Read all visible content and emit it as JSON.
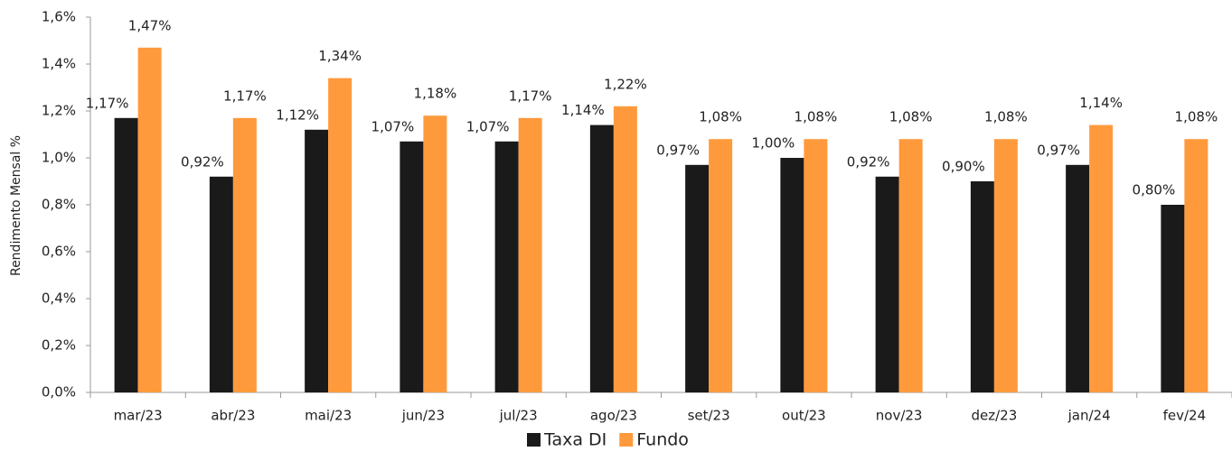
{
  "chart_data": {
    "type": "bar",
    "y_label": "Rendimento Mensal %",
    "categories": [
      "mar/23",
      "abr/23",
      "mai/23",
      "jun/23",
      "jul/23",
      "ago/23",
      "set/23",
      "out/23",
      "nov/23",
      "dez/23",
      "jan/24",
      "fev/24"
    ],
    "series": [
      {
        "name": "Taxa DI",
        "color": "#1a1a1a",
        "values": [
          1.17,
          0.92,
          1.12,
          1.07,
          1.07,
          1.14,
          0.97,
          1.0,
          0.92,
          0.9,
          0.97,
          0.8
        ],
        "value_labels": [
          "1,17%",
          "0,92%",
          "1,12%",
          "1,07%",
          "1,07%",
          "1,14%",
          "0,97%",
          "1,00%",
          "0,92%",
          "0,90%",
          "0,97%",
          "0,80%"
        ]
      },
      {
        "name": "Fundo",
        "color": "#ff9a3c",
        "values": [
          1.47,
          1.17,
          1.34,
          1.18,
          1.17,
          1.22,
          1.08,
          1.08,
          1.08,
          1.08,
          1.14,
          1.08
        ],
        "value_labels": [
          "1,47%",
          "1,17%",
          "1,34%",
          "1,18%",
          "1,17%",
          "1,22%",
          "1,08%",
          "1,08%",
          "1,08%",
          "1,08%",
          "1,14%",
          "1,08%"
        ]
      }
    ],
    "ylim": [
      0,
      1.6
    ],
    "yticks": [
      {
        "value": 0,
        "label": "0,0%"
      },
      {
        "value": 0.2,
        "label": "0,2%"
      },
      {
        "value": 0.4,
        "label": "0,4%"
      },
      {
        "value": 0.6,
        "label": "0,6%"
      },
      {
        "value": 0.8,
        "label": "0,8%"
      },
      {
        "value": 1.0,
        "label": "1,0%"
      },
      {
        "value": 1.2,
        "label": "1,2%"
      },
      {
        "value": 1.4,
        "label": "1,4%"
      },
      {
        "value": 1.6,
        "label": "1,6%"
      }
    ],
    "grid": false,
    "legend": "bottom"
  }
}
